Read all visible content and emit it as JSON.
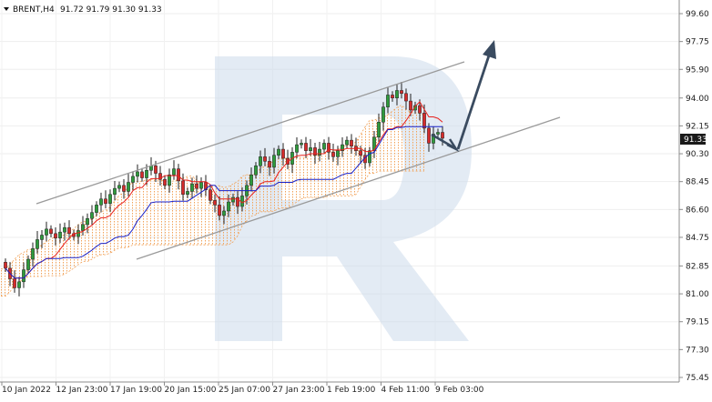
{
  "header": {
    "symbol_label": "BRENT,H4",
    "ohlc": "91.72 91.79 91.30 91.33",
    "menu_icon": "triangle-down-icon"
  },
  "price_axis": {
    "labels": [
      "99.60",
      "97.75",
      "95.90",
      "94.00",
      "92.15",
      "90.30",
      "88.45",
      "86.60",
      "84.75",
      "82.85",
      "81.00",
      "79.15",
      "77.30",
      "75.45"
    ],
    "min": 75.45,
    "max": 99.6,
    "current_price": "91.33"
  },
  "time_axis": {
    "labels": [
      "10 Jan 2022",
      "12 Jan 23:00",
      "17 Jan 19:00",
      "20 Jan 15:00",
      "25 Jan 07:00",
      "27 Jan 23:00",
      "1 Feb 19:00",
      "4 Feb 11:00",
      "9 Feb 03:00"
    ]
  },
  "colors": {
    "bull": "#2e9b3c",
    "bear": "#d62b2b",
    "tenkan": "#e8201c",
    "kijun": "#1a22c8",
    "cloud": "#f2a35a",
    "channel": "#9a9a9a",
    "forecast": "#3a4b60",
    "watermark": "#ccdbeb",
    "price_tag_bg": "#1a1a1a"
  },
  "chart_data": {
    "type": "candlestick",
    "title": "BRENT,H4",
    "x": [
      "10 Jan 2022",
      "12 Jan 23:00",
      "17 Jan 19:00",
      "20 Jan 15:00",
      "25 Jan 07:00",
      "27 Jan 23:00",
      "1 Feb 19:00",
      "4 Feb 11:00",
      "9 Feb 03:00"
    ],
    "ylim": [
      75.45,
      99.6
    ],
    "last": {
      "open": 91.72,
      "high": 91.79,
      "low": 91.3,
      "close": 91.33
    },
    "closes": [
      82.7,
      82.0,
      81.4,
      81.8,
      82.6,
      83.3,
      84.0,
      84.6,
      84.9,
      85.3,
      85.0,
      84.7,
      85.1,
      85.4,
      85.0,
      84.8,
      85.2,
      85.6,
      86.0,
      86.4,
      86.9,
      87.3,
      87.0,
      87.6,
      88.0,
      88.2,
      87.8,
      88.4,
      88.8,
      89.1,
      88.7,
      89.2,
      89.5,
      89.0,
      88.6,
      88.2,
      88.9,
      89.3,
      88.5,
      87.6,
      87.8,
      88.3,
      88.0,
      88.4,
      87.9,
      87.2,
      86.9,
      86.2,
      86.5,
      87.1,
      87.4,
      86.8,
      87.5,
      88.2,
      88.9,
      89.5,
      90.1,
      89.8,
      89.4,
      90.2,
      90.6,
      90.0,
      89.6,
      90.4,
      90.9,
      91.0,
      90.5,
      90.7,
      90.2,
      90.6,
      91.0,
      90.4,
      90.1,
      90.5,
      90.9,
      91.2,
      90.8,
      90.5,
      90.2,
      89.7,
      90.5,
      91.4,
      92.4,
      93.4,
      94.2,
      94.0,
      94.5,
      94.3,
      93.8,
      93.2,
      93.5,
      93.0,
      92.0,
      91.0,
      91.6,
      91.72,
      91.33
    ],
    "indicators": {
      "tenkan_sen": "red line",
      "kijun_sen": "blue line",
      "ichimoku_cloud": "orange dotted area"
    },
    "annotations": [
      "upper channel line",
      "lower channel line",
      "forecast arrow"
    ]
  }
}
